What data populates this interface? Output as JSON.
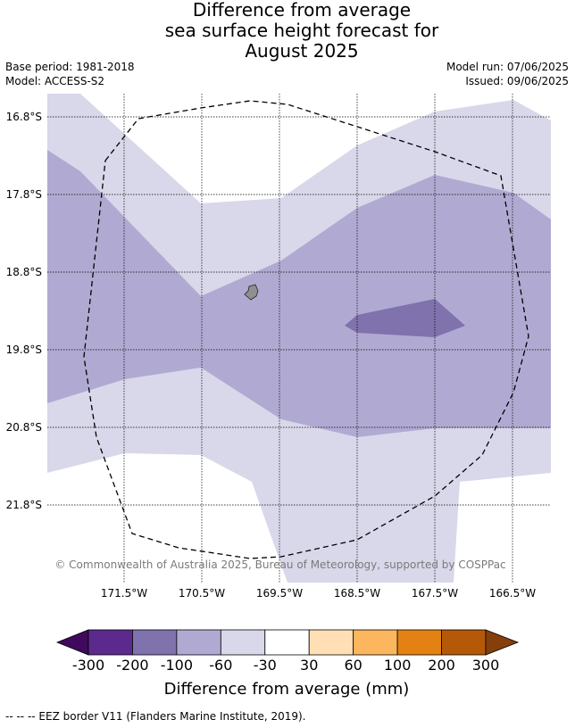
{
  "title": {
    "line1": "Difference from average",
    "line2": "sea surface height forecast for",
    "line3": "August 2025"
  },
  "meta": {
    "base_period": "Base period: 1981-2018",
    "model": "Model: ACCESS-S2",
    "model_run": "Model run: 07/06/2025",
    "issued": "Issued: 09/06/2025"
  },
  "map": {
    "lat_labels": [
      "16.8°S",
      "17.8°S",
      "18.8°S",
      "19.8°S",
      "20.8°S",
      "21.8°S"
    ],
    "lon_labels": [
      "171.5°W",
      "170.5°W",
      "169.5°W",
      "168.5°W",
      "167.5°W",
      "166.5°W"
    ],
    "copyright": "© Commonwealth of Australia 2025, Bureau of Meteorology, supported by COSPPac",
    "colors": {
      "band_light": "#d8d8ea",
      "band_mid": "#b0aad2",
      "band_dark": "#7f72ad",
      "island": "#8f8f8f",
      "grid": "#000000"
    }
  },
  "colorbar": {
    "ticks": [
      "-300",
      "-200",
      "-100",
      "-60",
      "-30",
      "30",
      "60",
      "100",
      "200",
      "300"
    ],
    "colors": [
      "#3f0a5e",
      "#5b2a8c",
      "#7f72ad",
      "#b0aad2",
      "#d8d8ea",
      "#ffffff",
      "#ffdfb3",
      "#fbb65e",
      "#e38213",
      "#b45908",
      "#843f0b"
    ],
    "label": "Difference from average (mm)"
  },
  "footer": {
    "legend": "--  --  -- EEZ border V11 (Flanders Marine Institute, 2019)."
  }
}
